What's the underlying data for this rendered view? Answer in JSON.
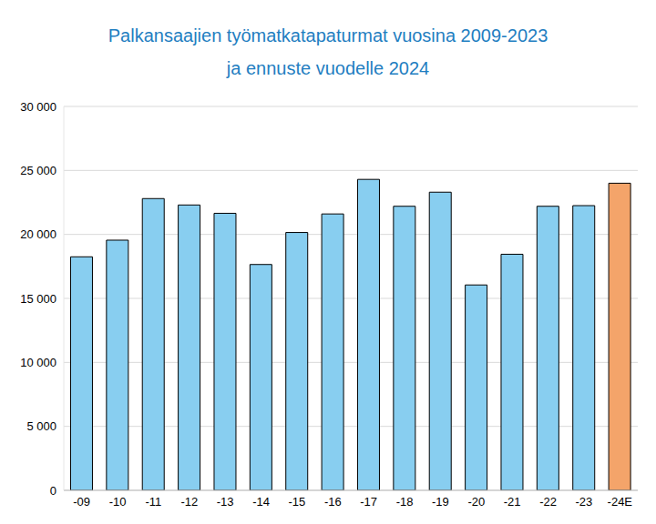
{
  "chart_data": {
    "type": "bar",
    "title": "Palkansaajien työmatkatapaturmat vuosina 2009-2023",
    "subtitle": "ja ennuste vuodelle 2024",
    "categories": [
      "-09",
      "-10",
      "-11",
      "-12",
      "-13",
      "-14",
      "-15",
      "-16",
      "-17",
      "-18",
      "-19",
      "-20",
      "-21",
      "-22",
      "-23",
      "-24E"
    ],
    "values": [
      18250,
      19550,
      22800,
      22300,
      21650,
      17650,
      20150,
      21600,
      24300,
      22200,
      23300,
      16050,
      18450,
      22200,
      22250,
      24000
    ],
    "colors": [
      "#88cef0",
      "#88cef0",
      "#88cef0",
      "#88cef0",
      "#88cef0",
      "#88cef0",
      "#88cef0",
      "#88cef0",
      "#88cef0",
      "#88cef0",
      "#88cef0",
      "#88cef0",
      "#88cef0",
      "#88cef0",
      "#88cef0",
      "#f4a46a"
    ],
    "ylim": [
      0,
      30000
    ],
    "yticks": [
      {
        "value": 0,
        "label": "0"
      },
      {
        "value": 5000,
        "label": "5 000"
      },
      {
        "value": 10000,
        "label": "10 000"
      },
      {
        "value": 15000,
        "label": "15 000"
      },
      {
        "value": 20000,
        "label": "20 000"
      },
      {
        "value": 25000,
        "label": "25 000"
      },
      {
        "value": 30000,
        "label": "30 000"
      }
    ],
    "grid": true
  }
}
